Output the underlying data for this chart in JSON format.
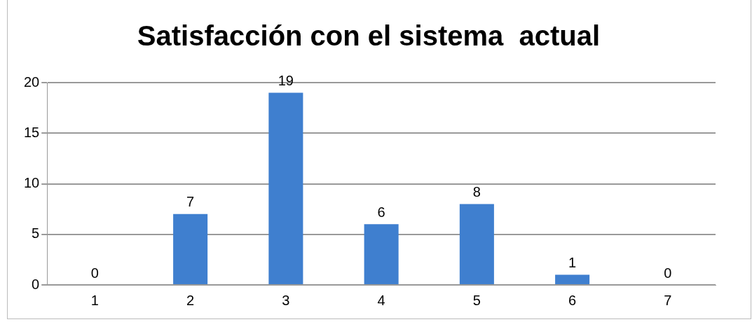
{
  "chart_data": {
    "type": "bar",
    "title": "Satisfacción con el sistema  actual",
    "categories": [
      "1",
      "2",
      "3",
      "4",
      "5",
      "6",
      "7"
    ],
    "values": [
      0,
      7,
      19,
      6,
      8,
      1,
      0
    ],
    "color": "#3f7fcf",
    "ylim": [
      0,
      20
    ],
    "yticks": [
      0,
      5,
      10,
      15,
      20
    ],
    "grid": "y",
    "data_labels": true,
    "legend": false
  }
}
